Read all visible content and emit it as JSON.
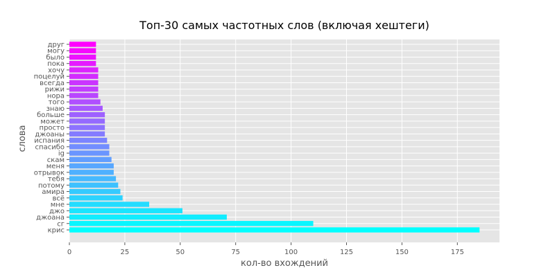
{
  "chart_data": {
    "type": "bar",
    "orientation": "horizontal",
    "title": "Топ-30 самых частотных слов (включая хештеги)",
    "xlabel": "кол-во вхождений",
    "ylabel": "слова",
    "xlim": [
      0,
      194
    ],
    "xticks": [
      0,
      25,
      50,
      75,
      100,
      125,
      150,
      175
    ],
    "grid": true,
    "colormap": "cool",
    "colormap_range": [
      "#00ffff",
      "#ff00ff"
    ],
    "categories": [
      "крис",
      "сг",
      "джоана",
      "джо",
      "мне",
      "всё",
      "амира",
      "потому",
      "тебя",
      "отрывок",
      "меня",
      "скам",
      "ig",
      "спасибо",
      "испания",
      "джоаны",
      "просто",
      "может",
      "больше",
      "знаю",
      "того",
      "нора",
      "рижи",
      "всегда",
      "поцелуй",
      "хочу",
      "пока",
      "было",
      "могу",
      "друг"
    ],
    "values": [
      185,
      110,
      71,
      51,
      36,
      24,
      23,
      22,
      21,
      20,
      20,
      19,
      18,
      18,
      17,
      16,
      16,
      16,
      16,
      15,
      14,
      13,
      13,
      13,
      13,
      13,
      12,
      12,
      12,
      12
    ]
  }
}
